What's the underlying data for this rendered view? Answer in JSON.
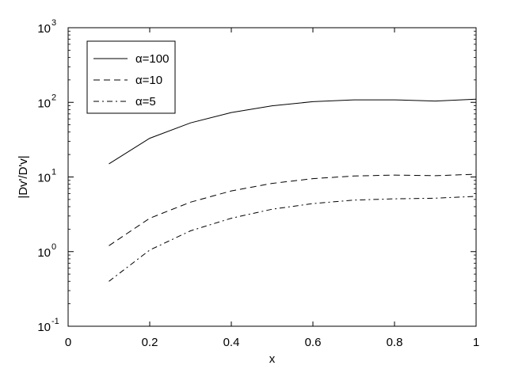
{
  "chart_data": {
    "type": "line",
    "xlabel": "x",
    "ylabel": "|Dv'/D'v|",
    "xlim": [
      0,
      1
    ],
    "ylim": [
      0.1,
      1000
    ],
    "y_scale": "log",
    "grid": false,
    "legend_position": "top-left",
    "x_ticks": [
      0,
      0.2,
      0.4,
      0.6,
      0.8,
      1
    ],
    "x_tick_labels": [
      "0",
      "0.2",
      "0.4",
      "0.6",
      "0.8",
      "1"
    ],
    "y_ticks": [
      0.1,
      1,
      10,
      100,
      1000
    ],
    "y_tick_labels": [
      {
        "base": "10",
        "exp": "-1"
      },
      {
        "base": "10",
        "exp": "0"
      },
      {
        "base": "10",
        "exp": "1"
      },
      {
        "base": "10",
        "exp": "2"
      },
      {
        "base": "10",
        "exp": "3"
      }
    ],
    "x": [
      0.1,
      0.2,
      0.3,
      0.4,
      0.5,
      0.6,
      0.7,
      0.8,
      0.9,
      1.0
    ],
    "series": [
      {
        "name": "α=100",
        "dash": "solid",
        "values": [
          15,
          33,
          53,
          73,
          90,
          102,
          108,
          108,
          104,
          110
        ]
      },
      {
        "name": "α=10",
        "dash": "dashed",
        "values": [
          1.2,
          2.8,
          4.6,
          6.5,
          8.2,
          9.5,
          10.3,
          10.6,
          10.4,
          10.9
        ]
      },
      {
        "name": "α=5",
        "dash": "dashdot",
        "values": [
          0.4,
          1.05,
          1.9,
          2.8,
          3.7,
          4.4,
          4.9,
          5.1,
          5.2,
          5.5
        ]
      }
    ]
  }
}
